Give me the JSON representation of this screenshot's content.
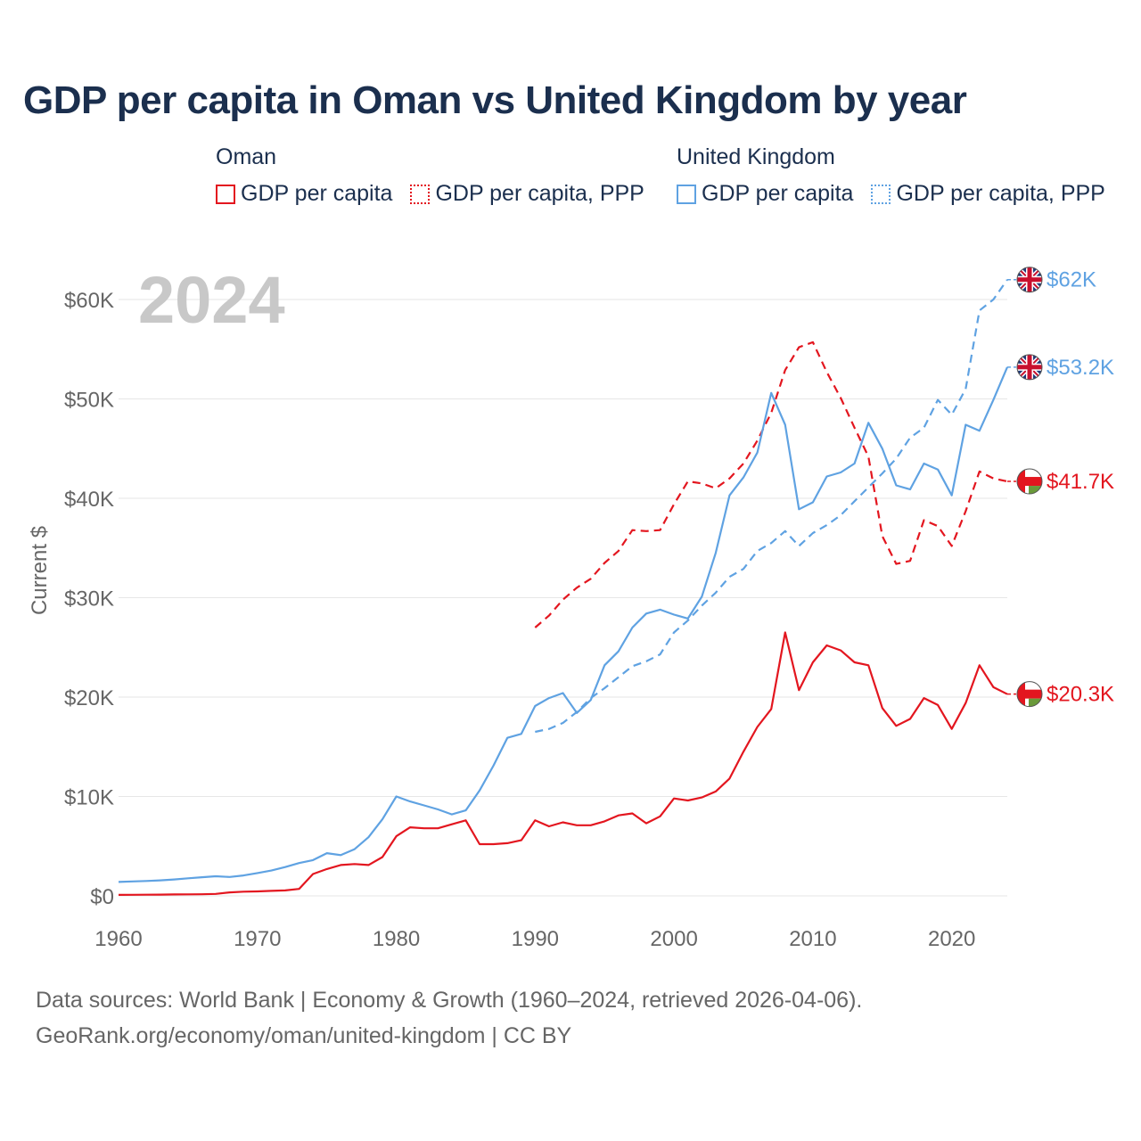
{
  "title": "GDP per capita in Oman vs United Kingdom by year",
  "legend": {
    "oman": {
      "title": "Oman",
      "gdp": "GDP per capita",
      "ppp": "GDP per capita, PPP"
    },
    "uk": {
      "title": "United Kingdom",
      "gdp": "GDP per capita",
      "ppp": "GDP per capita, PPP"
    }
  },
  "footer": {
    "line1": "Data sources: World Bank | Economy & Growth (1960–2024, retrieved 2026-04-06).",
    "line2": "GeoRank.org/economy/oman/united-kingdom | CC BY"
  },
  "colors": {
    "oman": "#e3161f",
    "uk": "#5fa2e2",
    "grid": "#e6e6e6",
    "axis_text": "#666666",
    "year_watermark": "#c8c8c8"
  },
  "chart_data": {
    "type": "line",
    "year_label": "2024",
    "ylabel": "Current $",
    "xlim": [
      1960,
      2024
    ],
    "ylim": [
      0,
      60000
    ],
    "xticks": [
      1960,
      1970,
      1980,
      1990,
      2000,
      2010,
      2020
    ],
    "xtick_labels": [
      "1960",
      "1970",
      "1980",
      "1990",
      "2000",
      "2010",
      "2020"
    ],
    "yticks": [
      0,
      10000,
      20000,
      30000,
      40000,
      50000,
      60000
    ],
    "ytick_labels": [
      "$0",
      "$10K",
      "$20K",
      "$30K",
      "$40K",
      "$50K",
      "$60K"
    ],
    "series": [
      {
        "name": "Oman GDP per capita",
        "country": "oman",
        "style": "solid",
        "end_label": "$20.3K",
        "x": [
          1960,
          1961,
          1962,
          1963,
          1964,
          1965,
          1966,
          1967,
          1968,
          1969,
          1970,
          1971,
          1972,
          1973,
          1974,
          1975,
          1976,
          1977,
          1978,
          1979,
          1980,
          1981,
          1982,
          1983,
          1984,
          1985,
          1986,
          1987,
          1988,
          1989,
          1990,
          1991,
          1992,
          1993,
          1994,
          1995,
          1996,
          1997,
          1998,
          1999,
          2000,
          2001,
          2002,
          2003,
          2004,
          2005,
          2006,
          2007,
          2008,
          2009,
          2010,
          2011,
          2012,
          2013,
          2014,
          2015,
          2016,
          2017,
          2018,
          2019,
          2020,
          2021,
          2022,
          2023,
          2024
        ],
        "values": [
          100,
          110,
          120,
          130,
          140,
          150,
          160,
          200,
          350,
          420,
          450,
          500,
          550,
          700,
          2200,
          2700,
          3100,
          3200,
          3100,
          3900,
          6000,
          6900,
          6800,
          6800,
          7200,
          7600,
          5200,
          5200,
          5300,
          5600,
          7600,
          7000,
          7400,
          7100,
          7100,
          7500,
          8100,
          8300,
          7300,
          8000,
          9800,
          9600,
          9900,
          10500,
          11800,
          14500,
          17000,
          18800,
          26500,
          20700,
          23500,
          25200,
          24700,
          23500,
          23200,
          18900,
          17100,
          17800,
          19900,
          19200,
          16800,
          19400,
          23200,
          21000,
          20300
        ]
      },
      {
        "name": "Oman GDP per capita, PPP",
        "country": "oman",
        "style": "dashed",
        "end_label": "$41.7K",
        "x": [
          1990,
          1991,
          1992,
          1993,
          1994,
          1995,
          1996,
          1997,
          1998,
          1999,
          2000,
          2001,
          2002,
          2003,
          2004,
          2005,
          2006,
          2007,
          2008,
          2009,
          2010,
          2011,
          2012,
          2013,
          2014,
          2015,
          2016,
          2017,
          2018,
          2019,
          2020,
          2021,
          2022,
          2023,
          2024
        ],
        "values": [
          27000,
          28200,
          29800,
          31000,
          31900,
          33500,
          34700,
          36800,
          36700,
          36800,
          39400,
          41700,
          41500,
          41000,
          42000,
          43500,
          45800,
          48600,
          52900,
          55200,
          55700,
          52700,
          50100,
          47100,
          44200,
          36200,
          33400,
          33700,
          37800,
          37200,
          35200,
          38700,
          42700,
          42000,
          41700
        ]
      },
      {
        "name": "United Kingdom GDP per capita",
        "country": "uk",
        "style": "solid",
        "end_label": "$53.2K",
        "x": [
          1960,
          1961,
          1962,
          1963,
          1964,
          1965,
          1966,
          1967,
          1968,
          1969,
          1970,
          1971,
          1972,
          1973,
          1974,
          1975,
          1976,
          1977,
          1978,
          1979,
          1980,
          1981,
          1982,
          1983,
          1984,
          1985,
          1986,
          1987,
          1988,
          1989,
          1990,
          1991,
          1992,
          1993,
          1994,
          1995,
          1996,
          1997,
          1998,
          1999,
          2000,
          2001,
          2002,
          2003,
          2004,
          2005,
          2006,
          2007,
          2008,
          2009,
          2010,
          2011,
          2012,
          2013,
          2014,
          2015,
          2016,
          2017,
          2018,
          2019,
          2020,
          2021,
          2022,
          2023,
          2024
        ],
        "values": [
          1400,
          1450,
          1500,
          1560,
          1650,
          1770,
          1870,
          1970,
          1900,
          2050,
          2300,
          2550,
          2900,
          3300,
          3600,
          4300,
          4100,
          4700,
          5900,
          7700,
          10000,
          9500,
          9100,
          8700,
          8200,
          8600,
          10600,
          13100,
          15900,
          16300,
          19100,
          19900,
          20400,
          18400,
          19700,
          23200,
          24600,
          27000,
          28400,
          28800,
          28300,
          27900,
          30100,
          34500,
          40300,
          42100,
          44600,
          50600,
          47400,
          38900,
          39600,
          42200,
          42600,
          43500,
          47600,
          45000,
          41300,
          40900,
          43500,
          42900,
          40300,
          47400,
          46800,
          49900,
          53200
        ]
      },
      {
        "name": "United Kingdom GDP per capita, PPP",
        "country": "uk",
        "style": "dashed",
        "end_label": "$62K",
        "x": [
          1990,
          1991,
          1992,
          1993,
          1994,
          1995,
          1996,
          1997,
          1998,
          1999,
          2000,
          2001,
          2002,
          2003,
          2004,
          2005,
          2006,
          2007,
          2008,
          2009,
          2010,
          2011,
          2012,
          2013,
          2014,
          2015,
          2016,
          2017,
          2018,
          2019,
          2020,
          2021,
          2022,
          2023,
          2024
        ],
        "values": [
          16500,
          16800,
          17400,
          18500,
          19900,
          20900,
          22000,
          23100,
          23600,
          24300,
          26500,
          27700,
          29200,
          30500,
          32100,
          32900,
          34700,
          35500,
          36700,
          35200,
          36500,
          37300,
          38300,
          39700,
          41100,
          42500,
          44000,
          46100,
          47100,
          49900,
          48400,
          51000,
          58900,
          60000,
          62000
        ]
      }
    ]
  }
}
